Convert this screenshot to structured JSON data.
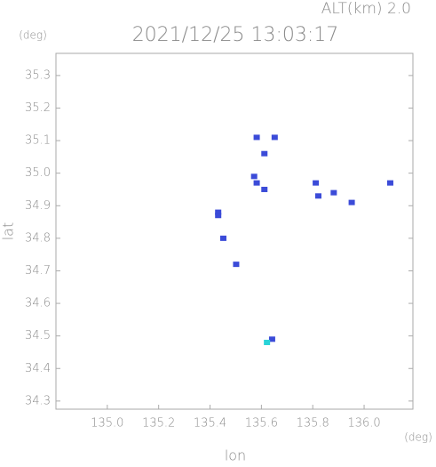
{
  "chart_data": {
    "type": "scatter",
    "title": "2021/12/25 13:03:17",
    "subtitle": "ALT(km) 2.0",
    "x_label": "lon",
    "y_label": "lat",
    "x_unit": "(deg)",
    "y_unit": "(deg)",
    "xlim": [
      134.8,
      136.19
    ],
    "ylim": [
      34.275,
      35.368
    ],
    "xticks": [
      {
        "value": 135,
        "label": "135.0"
      },
      135.2,
      135.4,
      135.6,
      135.8,
      {
        "value": 136,
        "label": "136.0"
      }
    ],
    "yticks": [
      34.3,
      34.4,
      34.5,
      34.6,
      34.7,
      34.8,
      34.9,
      {
        "value": 35,
        "label": "35.0"
      },
      35.1,
      35.2,
      35.3
    ],
    "series": [
      {
        "color": "#3b4bd8",
        "x": [
          135.58,
          135.65,
          135.61,
          135.57,
          135.58,
          135.61,
          135.81,
          135.82,
          135.88,
          135.95,
          136.1,
          135.43,
          135.43,
          135.45,
          135.5,
          135.64
        ],
        "values": [
          35.11,
          35.11,
          35.06,
          34.99,
          34.97,
          34.95,
          34.97,
          34.93,
          34.94,
          34.91,
          34.97,
          34.88,
          34.87,
          34.8,
          34.72,
          34.49
        ]
      },
      {
        "color": "#29d3d8",
        "x": [
          135.62
        ],
        "values": [
          34.48
        ]
      }
    ]
  }
}
